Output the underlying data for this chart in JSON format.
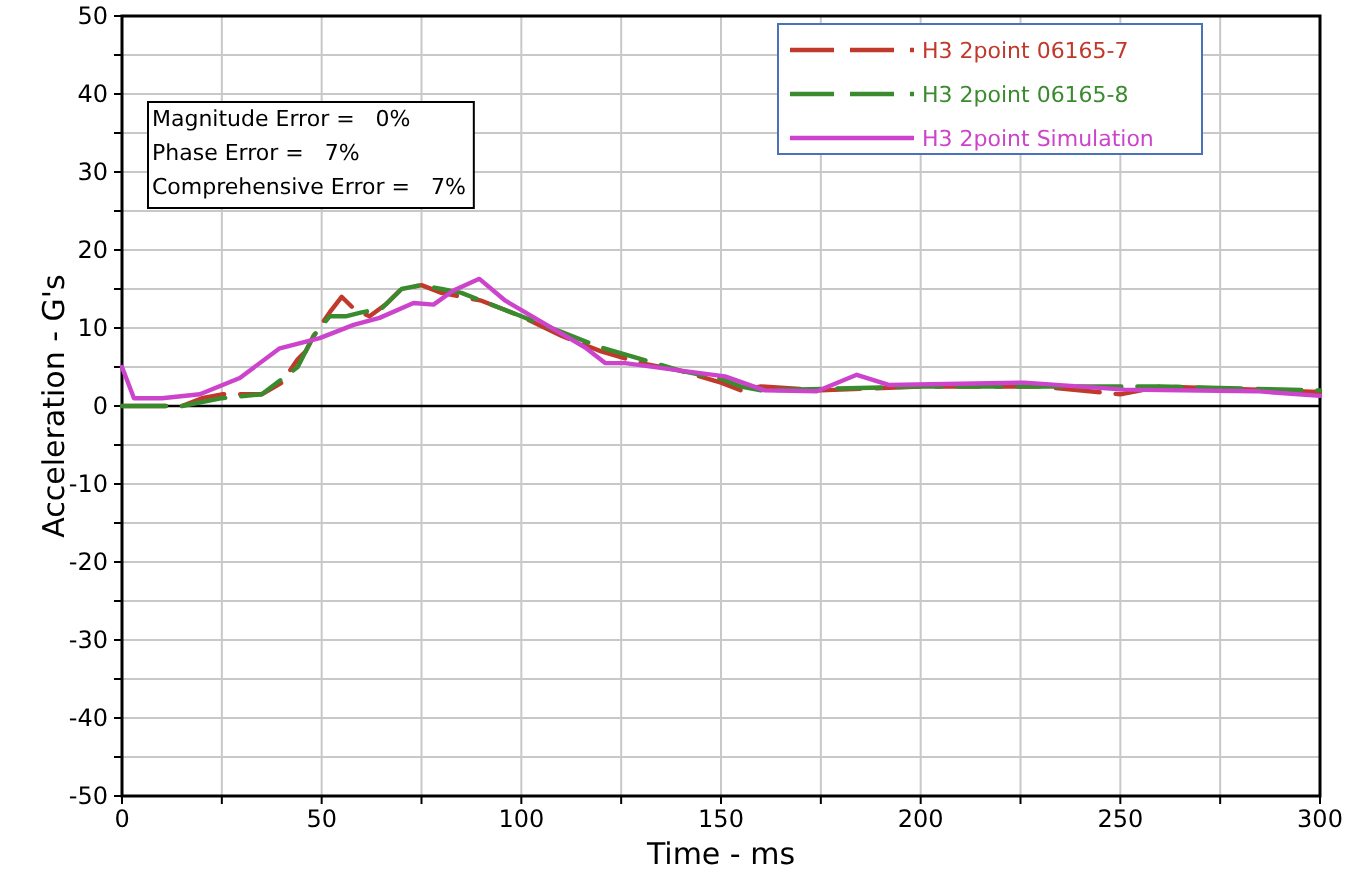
{
  "chart_data": {
    "type": "line",
    "xlabel": "Time - ms",
    "ylabel": "Acceleration - G's",
    "xlim": [
      0,
      300
    ],
    "xticks": [
      0,
      {
        "value": 25,
        "label": null
      },
      50,
      {
        "value": 75,
        "label": null
      },
      100,
      {
        "value": 125,
        "label": null
      },
      150,
      {
        "value": 175,
        "label": null
      },
      200,
      {
        "value": 225,
        "label": null
      },
      250,
      {
        "value": 275,
        "label": null
      },
      300
    ],
    "ylim": [
      -50,
      50
    ],
    "yticks": [
      -50,
      {
        "value": -45,
        "label": null
      },
      -40,
      {
        "value": -35,
        "label": null
      },
      -30,
      {
        "value": -25,
        "label": null
      },
      -20,
      {
        "value": -15,
        "label": null
      },
      -10,
      {
        "value": -5,
        "label": null
      },
      0,
      {
        "value": 5,
        "label": null
      },
      10,
      {
        "value": 15,
        "label": null
      },
      20,
      {
        "value": 25,
        "label": null
      },
      30,
      {
        "value": 35,
        "label": null
      },
      40,
      {
        "value": 45,
        "label": null
      },
      50
    ],
    "grid": true,
    "legend": "top right",
    "marker": "none",
    "ref_lines": [
      {
        "axis": "y",
        "value": 0,
        "label": null,
        "color": "#000000"
      }
    ],
    "annotations": [
      "Magnitude Error =   0%",
      "Phase Error =   7%",
      "Comprehensive Error =   7%"
    ],
    "series": [
      {
        "name": "H3 2point 06165-7",
        "color": "#c0392b",
        "line_style": "dashed",
        "x": [
          0,
          15,
          20,
          25,
          35,
          40,
          44,
          46,
          48,
          52,
          55,
          58,
          62,
          66,
          70,
          75,
          80,
          85,
          90,
          95,
          100,
          110,
          120,
          130,
          140,
          150,
          155,
          160,
          175,
          200,
          230,
          250,
          260,
          300
        ],
        "values": [
          0,
          0,
          1,
          1.5,
          1.5,
          3,
          6,
          7,
          9,
          12,
          14,
          12.5,
          11.5,
          13,
          15,
          15.5,
          14.5,
          14,
          13.5,
          12.5,
          11.5,
          9,
          7,
          5.5,
          4.5,
          3,
          2,
          2.5,
          2,
          2.5,
          2.5,
          1.5,
          2.5,
          1.8
        ]
      },
      {
        "name": "H3 2point 06165-8",
        "color": "#3a8a2e",
        "line_style": "dashed",
        "x": [
          0,
          15,
          25,
          35,
          44,
          48,
          52,
          56,
          60,
          65,
          70,
          75,
          80,
          85,
          90,
          95,
          100,
          110,
          120,
          130,
          140,
          150,
          155,
          160,
          200,
          230,
          260,
          300
        ],
        "values": [
          0,
          0,
          1,
          1.5,
          5,
          9,
          11.5,
          11.5,
          12,
          12.5,
          15,
          15.5,
          15,
          14.5,
          13.5,
          12.5,
          11.5,
          9.5,
          7.5,
          6,
          4.5,
          3.5,
          2.5,
          2,
          2.5,
          2.5,
          2.5,
          2
        ]
      },
      {
        "name": "H3 2point Simulation",
        "color": "#cc44cc",
        "line_style": "solid",
        "x": [
          0,
          3,
          10,
          19.5,
          29.5,
          39.5,
          49.5,
          58,
          64.5,
          73,
          78,
          83,
          89.5,
          96,
          106,
          116,
          121,
          126,
          139,
          151,
          161,
          174,
          184,
          192,
          226,
          251,
          284,
          300
        ],
        "values": [
          5,
          1,
          1,
          1.5,
          3.6,
          7.4,
          8.7,
          10.4,
          11.3,
          13.2,
          13,
          14.8,
          16.3,
          13.5,
          10.5,
          7.5,
          5.5,
          5.5,
          4.6,
          3.8,
          2,
          1.9,
          4,
          2.7,
          3,
          2.1,
          1.9,
          1.3
        ]
      }
    ]
  }
}
